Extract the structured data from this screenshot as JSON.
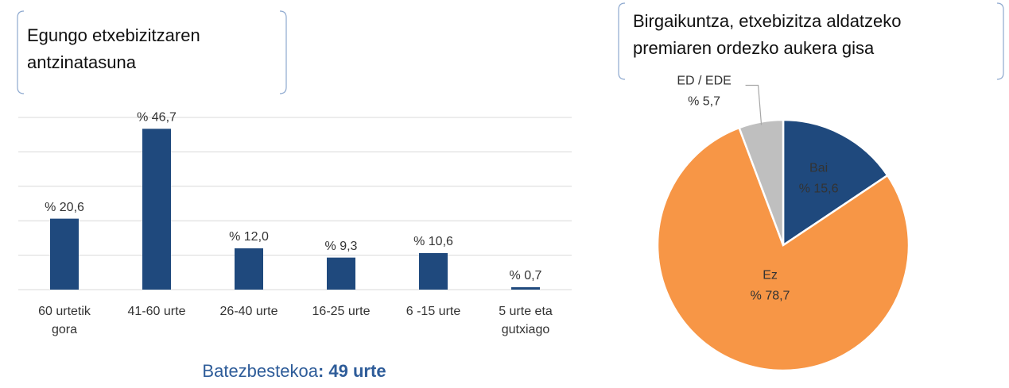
{
  "chart_data": [
    {
      "type": "bar",
      "title": "Egungo etxebizitzaren antzinatasuna",
      "categories": [
        "60 urtetik gora",
        "41-60 urte",
        "26-40 urte",
        "16-25 urte",
        "6 -15 urte",
        "5 urte eta gutxiago"
      ],
      "values": [
        20.6,
        46.7,
        12.0,
        9.3,
        10.6,
        0.7
      ],
      "value_labels": [
        "% 20,6",
        "% 46,7",
        "% 12,0",
        "% 9,3",
        "% 10,6",
        "% 0,7"
      ],
      "color": "#1f497d",
      "ylim": [
        0,
        50
      ],
      "yticks": [
        0,
        10,
        20,
        30,
        40,
        50
      ],
      "grid": true,
      "footnote": {
        "label": "Batezbestekoa",
        "value": ": 49 urte"
      }
    },
    {
      "type": "pie",
      "title": "Birgaikuntza, etxebizitza aldatzeko premiaren ordezko aukera gisa",
      "categories": [
        "Bai",
        "Ez",
        "ED / EDE"
      ],
      "values": [
        15.6,
        78.7,
        5.7
      ],
      "value_labels": [
        "% 15,6",
        "% 78,7",
        "% 5,7"
      ],
      "colors": [
        "#1f497d",
        "#f79646",
        "#bfbfbf"
      ]
    }
  ]
}
